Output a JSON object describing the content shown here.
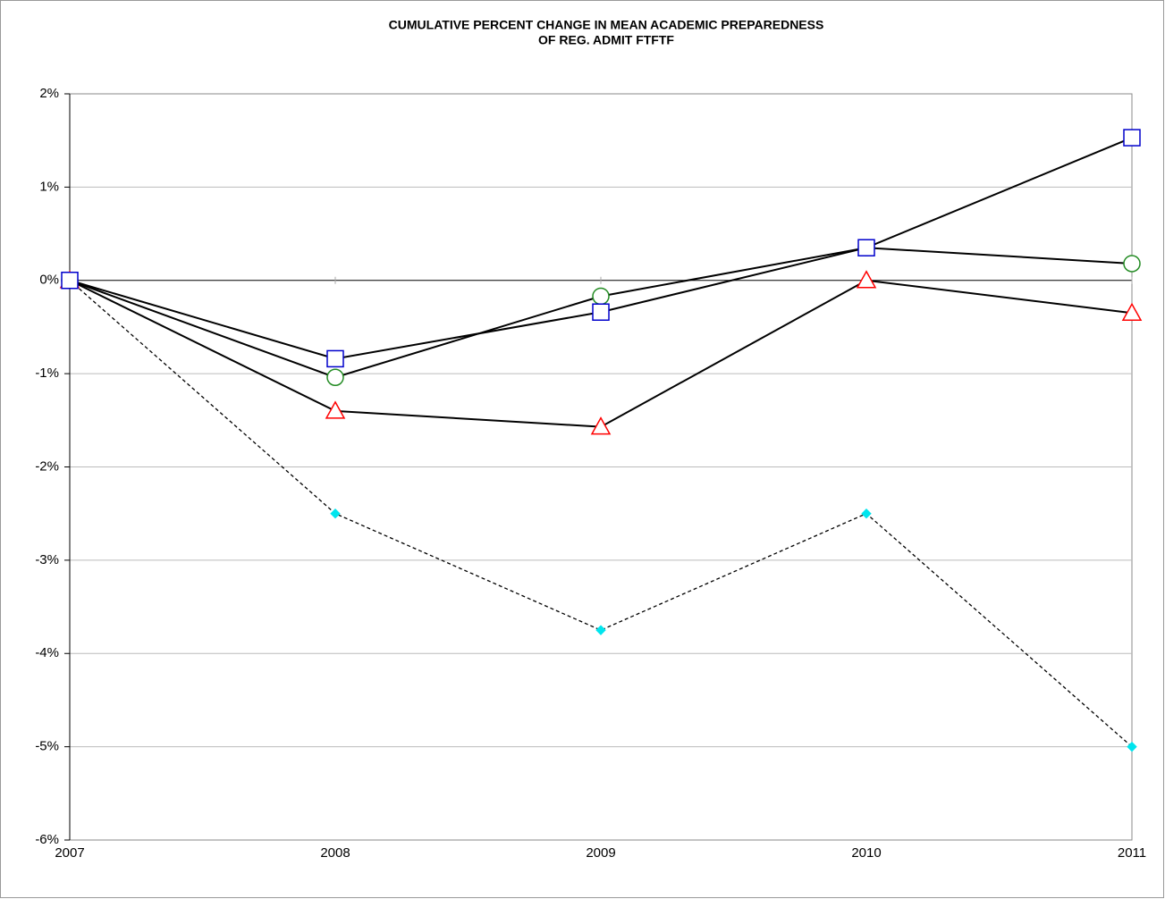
{
  "chart_data": {
    "type": "line",
    "title": "CUMULATIVE PERCENT CHANGE IN MEAN ACADEMIC PREPAREDNESS",
    "subtitle": "OF REG. ADMIT FTFTF",
    "categories": [
      "2007",
      "2008",
      "2009",
      "2010",
      "2011"
    ],
    "series": [
      {
        "marker": "square",
        "color": "#0000cc",
        "line_color": "#000000",
        "dashed": false,
        "values": [
          0,
          -0.84,
          -0.34,
          0.35,
          1.53
        ]
      },
      {
        "marker": "circle",
        "color": "#228b22",
        "line_color": "#000000",
        "dashed": false,
        "values": [
          0,
          -1.04,
          -0.17,
          0.35,
          0.18
        ]
      },
      {
        "marker": "triangle",
        "color": "#ff0000",
        "line_color": "#000000",
        "dashed": false,
        "values": [
          0,
          -1.4,
          -1.57,
          0,
          -0.35
        ]
      },
      {
        "marker": "diamond",
        "color": "#00e5ee",
        "line_color": "#000000",
        "dashed": true,
        "values": [
          0,
          -2.5,
          -3.75,
          -2.5,
          -5.0
        ]
      }
    ],
    "ylim": [
      -6,
      2
    ],
    "yticks": [
      {
        "value": -6,
        "label": "-6%"
      },
      {
        "value": -5,
        "label": "-5%"
      },
      {
        "value": -4,
        "label": "-4%"
      },
      {
        "value": -3,
        "label": "-3%"
      },
      {
        "value": -2,
        "label": "-2%"
      },
      {
        "value": -1,
        "label": "-1%"
      },
      {
        "value": 0,
        "label": "0%"
      },
      {
        "value": 1,
        "label": "1%"
      },
      {
        "value": 2,
        "label": "2%"
      }
    ],
    "grid": true
  }
}
